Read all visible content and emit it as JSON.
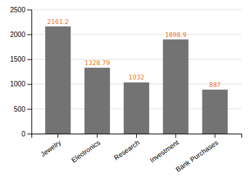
{
  "chart_data": {
    "type": "bar",
    "categories": [
      "Jewelry",
      "Electronics",
      "Research",
      "Investment",
      "Bank Purchases"
    ],
    "values": [
      2161.2,
      1328.79,
      1032,
      1898.9,
      887
    ],
    "color": "#737373",
    "ylim": [
      0,
      2500
    ],
    "yticks": [
      0,
      500,
      1000,
      1500,
      2000,
      2500
    ],
    "grid": true,
    "data_labels": true
  }
}
